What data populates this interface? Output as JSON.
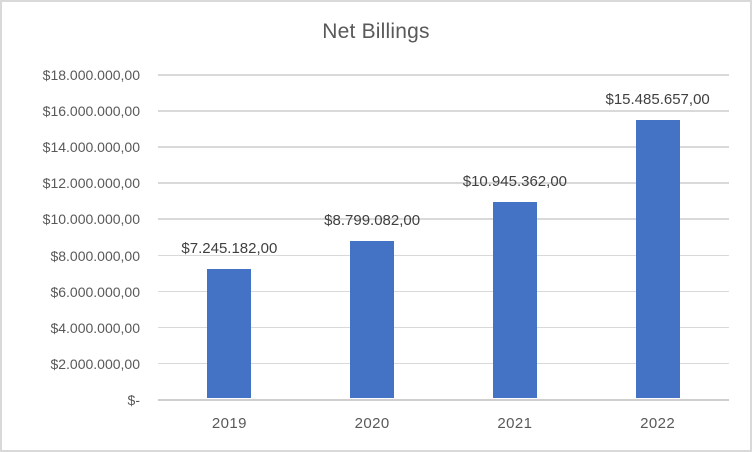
{
  "chart_data": {
    "type": "bar",
    "title": "Net Billings",
    "xlabel": "",
    "ylabel": "",
    "categories": [
      "2019",
      "2020",
      "2021",
      "2022"
    ],
    "series": [
      {
        "name": "Net Billings",
        "values": [
          7245182,
          8799082,
          10945362,
          15485657
        ],
        "value_labels": [
          "$7.245.182,00",
          "$8.799.082,00",
          "$10.945.362,00",
          "$15.485.657,00"
        ]
      }
    ],
    "ylim": [
      0,
      18000000
    ],
    "y_ticks": [
      {
        "value": 0,
        "label": "$-"
      },
      {
        "value": 2000000,
        "label": "$2.000.000,00"
      },
      {
        "value": 4000000,
        "label": "$4.000.000,00"
      },
      {
        "value": 6000000,
        "label": "$6.000.000,00"
      },
      {
        "value": 8000000,
        "label": "$8.000.000,00"
      },
      {
        "value": 10000000,
        "label": "$10.000.000,00"
      },
      {
        "value": 12000000,
        "label": "$12.000.000,00"
      },
      {
        "value": 14000000,
        "label": "$14.000.000,00"
      },
      {
        "value": 16000000,
        "label": "$16.000.000,00"
      },
      {
        "value": 18000000,
        "label": "$18.000.000,00"
      }
    ],
    "grid": true,
    "legend": "none",
    "colors": {
      "bar": "#4472C4",
      "gridline": "#D9D9D9",
      "axis_line": "#D0CECE",
      "title_text": "#595959",
      "tick_text": "#595959",
      "value_label_text": "#404040",
      "chart_border": "#D9D9D9",
      "background": "#FFFFFF"
    }
  }
}
